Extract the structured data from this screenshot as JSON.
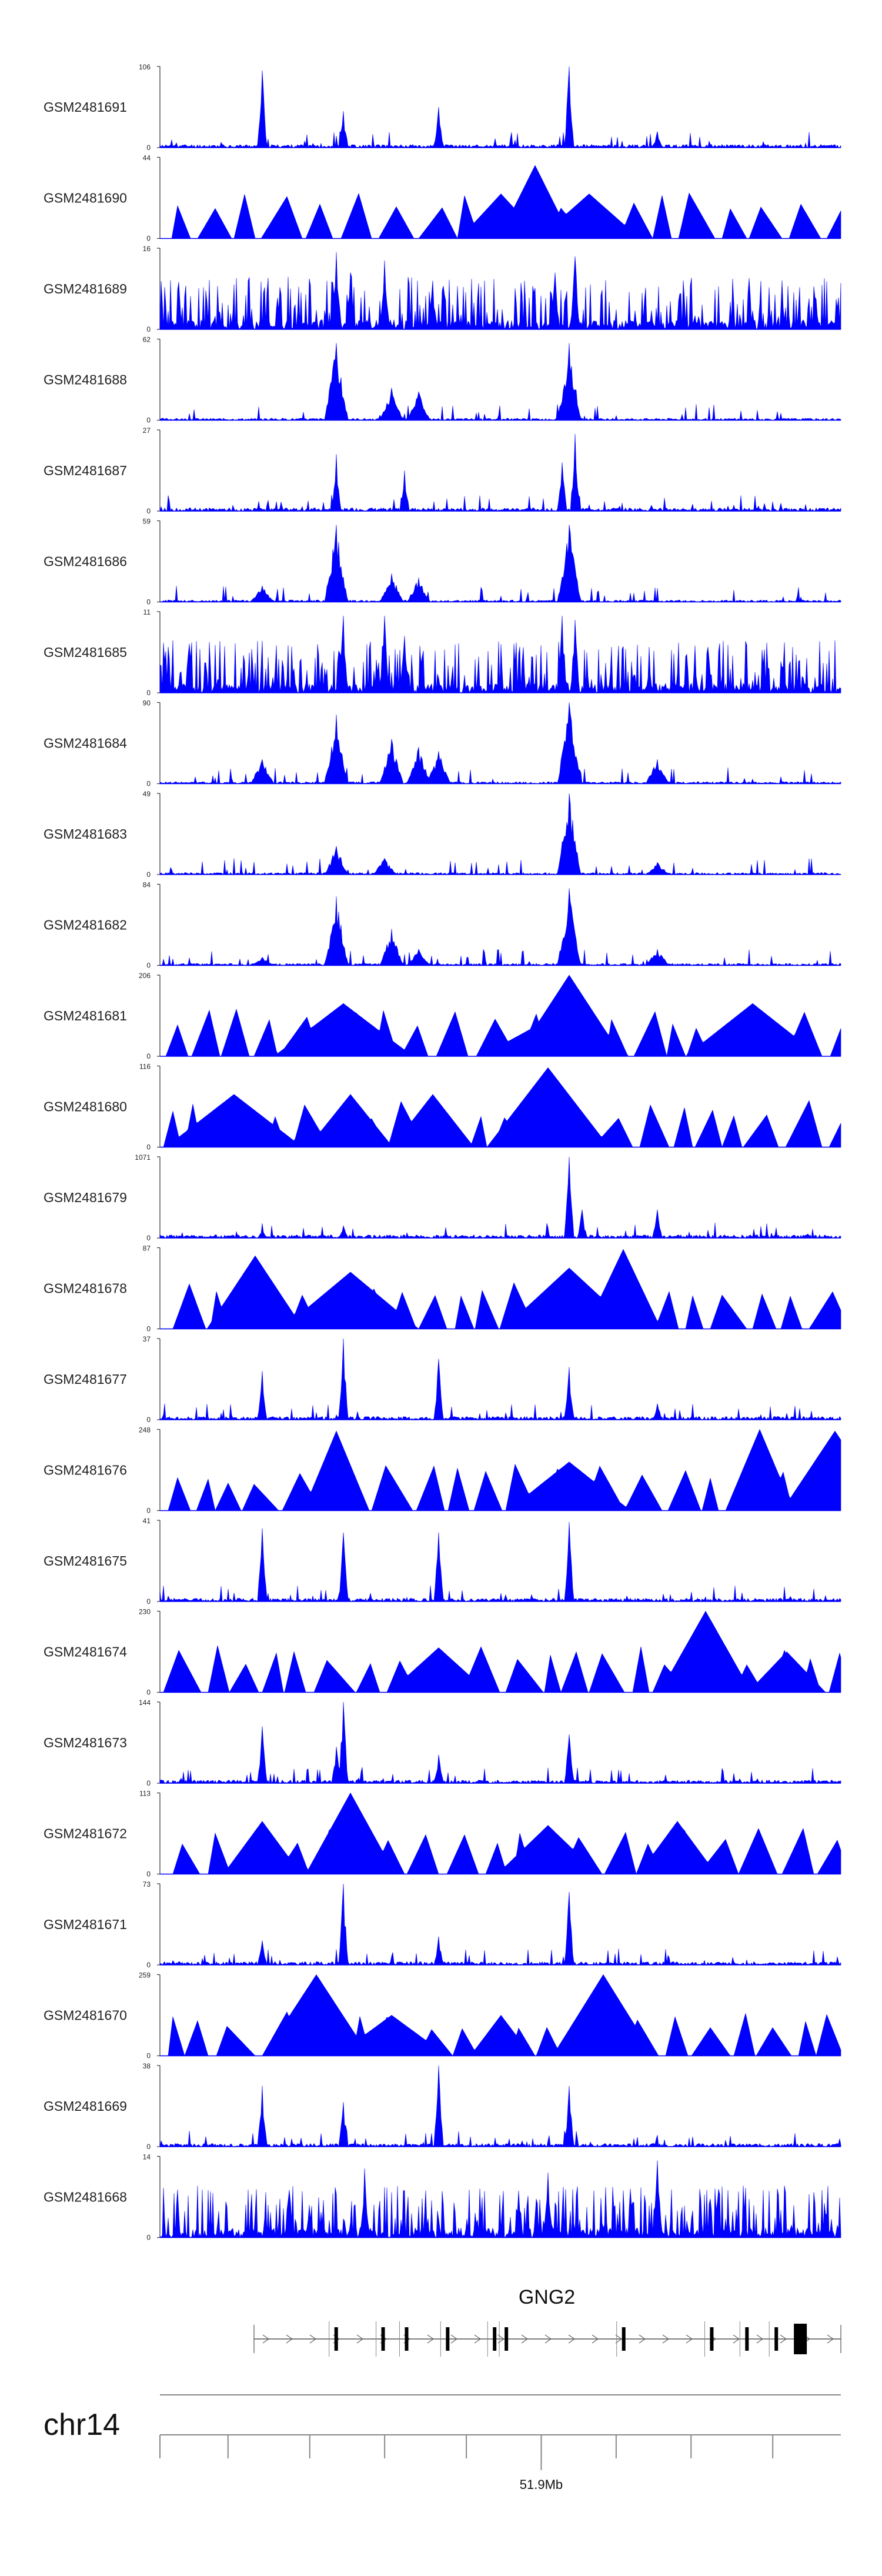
{
  "chart_data": {
    "type": "area",
    "description": "Genome browser coverage tracks",
    "color": "#0000ff",
    "tracks": [
      {
        "label": "GSM2481691",
        "ymax": "106",
        "ymin": "0",
        "profile": "sparse",
        "seed": 11,
        "peaks": [
          [
            0.15,
            0.95
          ],
          [
            0.27,
            0.45
          ],
          [
            0.41,
            0.5
          ],
          [
            0.6,
            1.0
          ],
          [
            0.73,
            0.2
          ]
        ]
      },
      {
        "label": "GSM2481690",
        "ymax": "44",
        "ymin": "0",
        "profile": "tri",
        "seed": 12,
        "peaks": [
          [
            0.55,
            0.9
          ],
          [
            0.5,
            0.55
          ],
          [
            0.63,
            0.55
          ]
        ]
      },
      {
        "label": "GSM2481689",
        "ymax": "16",
        "ymin": "0",
        "profile": "dense",
        "seed": 13,
        "peaks": [
          [
            0.26,
            0.95
          ],
          [
            0.28,
            0.7
          ],
          [
            0.33,
            0.85
          ],
          [
            0.4,
            0.6
          ],
          [
            0.58,
            0.7
          ],
          [
            0.61,
            0.9
          ]
        ]
      },
      {
        "label": "GSM2481688",
        "ymax": "62",
        "ymin": "0",
        "profile": "broad",
        "seed": 14,
        "peaks": [
          [
            0.26,
            0.95
          ],
          [
            0.34,
            0.4
          ],
          [
            0.38,
            0.35
          ],
          [
            0.6,
            0.95
          ]
        ]
      },
      {
        "label": "GSM2481687",
        "ymax": "27",
        "ymin": "0",
        "profile": "sparse",
        "seed": 15,
        "peaks": [
          [
            0.26,
            0.7
          ],
          [
            0.36,
            0.5
          ],
          [
            0.59,
            0.6
          ],
          [
            0.61,
            0.95
          ]
        ]
      },
      {
        "label": "GSM2481686",
        "ymax": "59",
        "ymin": "0",
        "profile": "broad",
        "seed": 16,
        "peaks": [
          [
            0.15,
            0.2
          ],
          [
            0.26,
            0.95
          ],
          [
            0.34,
            0.35
          ],
          [
            0.38,
            0.3
          ],
          [
            0.6,
            0.95
          ]
        ]
      },
      {
        "label": "GSM2481685",
        "ymax": "11",
        "ymin": "0",
        "profile": "dense",
        "seed": 17,
        "peaks": [
          [
            0.27,
            0.95
          ],
          [
            0.33,
            0.95
          ],
          [
            0.36,
            0.7
          ],
          [
            0.59,
            0.95
          ],
          [
            0.61,
            0.9
          ]
        ]
      },
      {
        "label": "GSM2481684",
        "ymax": "90",
        "ymin": "0",
        "profile": "broad",
        "seed": 18,
        "peaks": [
          [
            0.15,
            0.3
          ],
          [
            0.26,
            0.85
          ],
          [
            0.34,
            0.55
          ],
          [
            0.38,
            0.45
          ],
          [
            0.41,
            0.4
          ],
          [
            0.6,
            1.0
          ],
          [
            0.73,
            0.3
          ]
        ]
      },
      {
        "label": "GSM2481683",
        "ymax": "49",
        "ymin": "0",
        "profile": "broad",
        "seed": 19,
        "peaks": [
          [
            0.26,
            0.35
          ],
          [
            0.33,
            0.2
          ],
          [
            0.6,
            1.0
          ],
          [
            0.73,
            0.15
          ]
        ]
      },
      {
        "label": "GSM2481682",
        "ymax": "84",
        "ymin": "0",
        "profile": "broad",
        "seed": 20,
        "peaks": [
          [
            0.15,
            0.1
          ],
          [
            0.26,
            0.85
          ],
          [
            0.34,
            0.45
          ],
          [
            0.38,
            0.2
          ],
          [
            0.6,
            0.95
          ],
          [
            0.73,
            0.2
          ]
        ]
      },
      {
        "label": "GSM2481681",
        "ymax": "206",
        "ymin": "0",
        "profile": "tri",
        "seed": 21,
        "peaks": [
          [
            0.27,
            0.65
          ],
          [
            0.6,
            1.0
          ],
          [
            0.58,
            0.5
          ],
          [
            0.87,
            0.65
          ]
        ]
      },
      {
        "label": "GSM2481680",
        "ymax": "116",
        "ymin": "0",
        "profile": "tri",
        "seed": 22,
        "peaks": [
          [
            0.57,
            0.98
          ],
          [
            0.11,
            0.65
          ],
          [
            0.28,
            0.65
          ],
          [
            0.4,
            0.65
          ]
        ]
      },
      {
        "label": "GSM2481679",
        "ymax": "1071",
        "ymin": "0",
        "profile": "sparse",
        "seed": 23,
        "peaks": [
          [
            0.15,
            0.1
          ],
          [
            0.27,
            0.15
          ],
          [
            0.6,
            1.0
          ],
          [
            0.62,
            0.35
          ],
          [
            0.73,
            0.35
          ]
        ]
      },
      {
        "label": "GSM2481678",
        "ymax": "87",
        "ymin": "0",
        "profile": "tri",
        "seed": 24,
        "peaks": [
          [
            0.68,
            0.98
          ],
          [
            0.14,
            0.9
          ],
          [
            0.28,
            0.7
          ],
          [
            0.6,
            0.75
          ]
        ]
      },
      {
        "label": "GSM2481677",
        "ymax": "37",
        "ymin": "0",
        "profile": "sparse",
        "seed": 25,
        "peaks": [
          [
            0.15,
            0.6
          ],
          [
            0.27,
            1.0
          ],
          [
            0.41,
            0.75
          ],
          [
            0.6,
            0.65
          ],
          [
            0.73,
            0.2
          ]
        ]
      },
      {
        "label": "GSM2481676",
        "ymax": "248",
        "ymin": "0",
        "profile": "tri",
        "seed": 26,
        "peaks": [
          [
            0.26,
            0.98
          ],
          [
            0.88,
            1.0
          ],
          [
            0.6,
            0.6
          ],
          [
            0.99,
            0.98
          ]
        ]
      },
      {
        "label": "GSM2481675",
        "ymax": "41",
        "ymin": "0",
        "profile": "sparse",
        "seed": 27,
        "peaks": [
          [
            0.15,
            0.9
          ],
          [
            0.27,
            0.85
          ],
          [
            0.41,
            0.85
          ],
          [
            0.6,
            0.98
          ]
        ]
      },
      {
        "label": "GSM2481674",
        "ymax": "230",
        "ymin": "0",
        "profile": "tri",
        "seed": 28,
        "peaks": [
          [
            0.8,
            1.0
          ],
          [
            0.41,
            0.55
          ],
          [
            0.92,
            0.5
          ]
        ]
      },
      {
        "label": "GSM2481673",
        "ymax": "144",
        "ymin": "0",
        "profile": "sparse",
        "seed": 29,
        "peaks": [
          [
            0.15,
            0.7
          ],
          [
            0.27,
            1.0
          ],
          [
            0.26,
            0.45
          ],
          [
            0.41,
            0.35
          ],
          [
            0.6,
            0.6
          ]
        ]
      },
      {
        "label": "GSM2481672",
        "ymax": "113",
        "ymin": "0",
        "profile": "tri",
        "seed": 30,
        "peaks": [
          [
            0.28,
            1.0
          ],
          [
            0.15,
            0.65
          ],
          [
            0.57,
            0.6
          ],
          [
            0.76,
            0.65
          ]
        ]
      },
      {
        "label": "GSM2481671",
        "ymax": "73",
        "ymin": "0",
        "profile": "sparse",
        "seed": 31,
        "peaks": [
          [
            0.27,
            1.0
          ],
          [
            0.6,
            0.9
          ],
          [
            0.41,
            0.35
          ],
          [
            0.15,
            0.3
          ]
        ]
      },
      {
        "label": "GSM2481670",
        "ymax": "259",
        "ymin": "0",
        "profile": "tri",
        "seed": 32,
        "peaks": [
          [
            0.23,
            1.0
          ],
          [
            0.65,
            1.0
          ],
          [
            0.34,
            0.5
          ],
          [
            0.5,
            0.5
          ]
        ]
      },
      {
        "label": "GSM2481669",
        "ymax": "38",
        "ymin": "0",
        "profile": "sparse",
        "seed": 33,
        "peaks": [
          [
            0.15,
            0.75
          ],
          [
            0.27,
            0.55
          ],
          [
            0.41,
            1.0
          ],
          [
            0.6,
            0.75
          ]
        ]
      },
      {
        "label": "GSM2481668",
        "ymax": "14",
        "ymin": "0",
        "profile": "dense",
        "seed": 34,
        "peaks": [
          [
            0.3,
            0.85
          ],
          [
            0.57,
            0.8
          ],
          [
            0.73,
            0.95
          ]
        ]
      }
    ],
    "gene": {
      "name": "GNG2",
      "exons": [
        0.14,
        0.22,
        0.26,
        0.33,
        0.41,
        0.43,
        0.63,
        0.78,
        0.84,
        0.89
      ],
      "coding_exon": 0.93
    },
    "axis": {
      "chromosome": "chr14",
      "tick_label": "51.9Mb",
      "tick_label_position": 0.56,
      "tick_positions": [
        0.1,
        0.22,
        0.33,
        0.45,
        0.56,
        0.67,
        0.78,
        0.9
      ]
    }
  }
}
